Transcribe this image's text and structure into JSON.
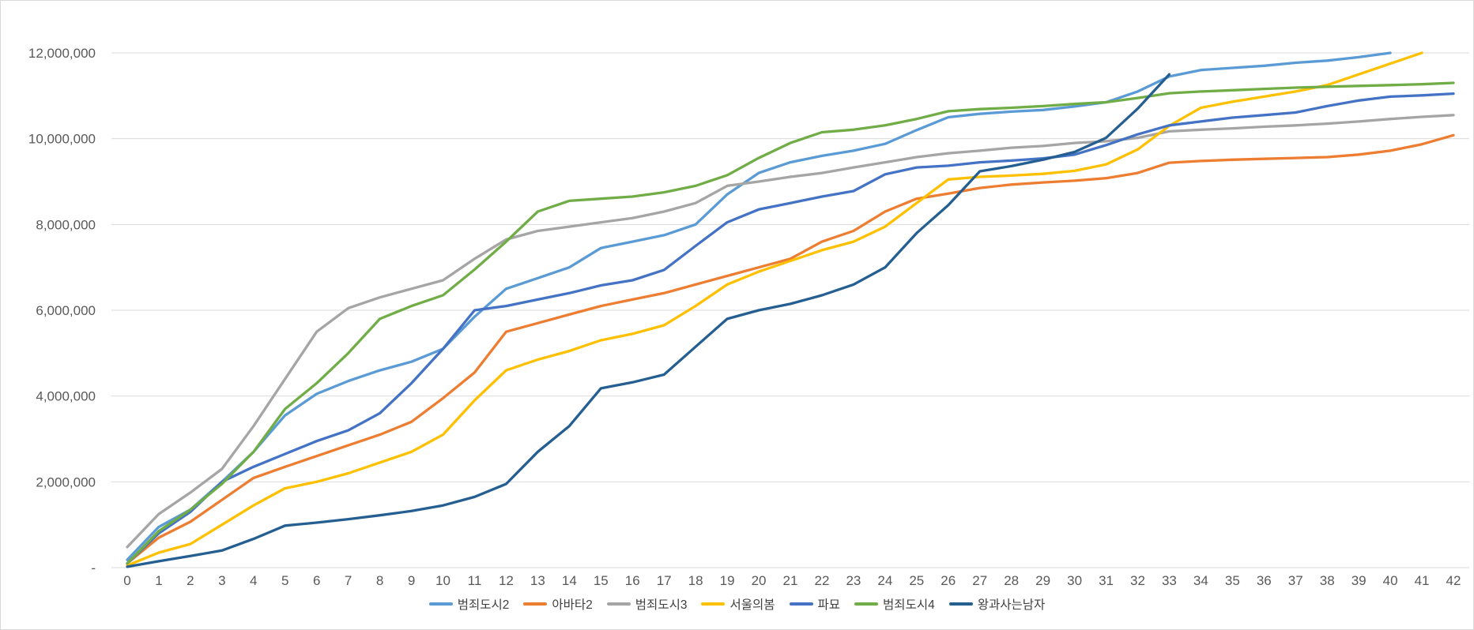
{
  "chart_data": {
    "type": "line",
    "title": "",
    "x_label": "",
    "y_label": "",
    "x_categories": [
      "0",
      "1",
      "2",
      "3",
      "4",
      "5",
      "6",
      "7",
      "8",
      "9",
      "10",
      "11",
      "12",
      "13",
      "14",
      "15",
      "16",
      "17",
      "18",
      "19",
      "20",
      "21",
      "22",
      "23",
      "24",
      "25",
      "26",
      "27",
      "28",
      "29",
      "30",
      "31",
      "32",
      "33",
      "34",
      "35",
      "36",
      "37",
      "38",
      "39",
      "40",
      "41",
      "42"
    ],
    "y_axis": {
      "min": 0,
      "max": 12000000,
      "step": 2000000,
      "tick_labels": [
        "-",
        "2,000,000",
        "4,000,000",
        "6,000,000",
        "8,000,000",
        "10,000,000",
        "12,000,000"
      ]
    },
    "grid": true,
    "legend_position": "bottom",
    "series": [
      {
        "name": "범죄도시2",
        "color": "#5B9BD5",
        "values": [
          180000,
          950000,
          1350000,
          2000000,
          2700000,
          3550000,
          4050000,
          4350000,
          4600000,
          4800000,
          5100000,
          5850000,
          6500000,
          6750000,
          7000000,
          7450000,
          7600000,
          7750000,
          8000000,
          8700000,
          9200000,
          9450000,
          9600000,
          9720000,
          9880000,
          10200000,
          10500000,
          10580000,
          10630000,
          10670000,
          10750000,
          10850000,
          11100000,
          11450000,
          11600000,
          11650000,
          11700000,
          11770000,
          11820000,
          11900000,
          12000000
        ]
      },
      {
        "name": "아바타2",
        "color": "#ED7D31",
        "values": [
          100000,
          700000,
          1070000,
          1580000,
          2090000,
          2350000,
          2600000,
          2850000,
          3100000,
          3400000,
          3950000,
          4550000,
          5500000,
          5700000,
          5900000,
          6100000,
          6250000,
          6400000,
          6600000,
          6800000,
          7000000,
          7200000,
          7600000,
          7850000,
          8300000,
          8600000,
          8720000,
          8850000,
          8930000,
          8980000,
          9020000,
          9080000,
          9200000,
          9440000,
          9480000,
          9510000,
          9530000,
          9550000,
          9570000,
          9630000,
          9720000,
          9870000,
          10080000
        ]
      },
      {
        "name": "범죄도시3",
        "color": "#A5A5A5",
        "values": [
          480000,
          1250000,
          1750000,
          2300000,
          3300000,
          4400000,
          5500000,
          6050000,
          6300000,
          6500000,
          6700000,
          7200000,
          7650000,
          7850000,
          7950000,
          8050000,
          8150000,
          8300000,
          8500000,
          8900000,
          9000000,
          9110000,
          9200000,
          9330000,
          9450000,
          9570000,
          9660000,
          9720000,
          9790000,
          9830000,
          9900000,
          9940000,
          10020000,
          10170000,
          10210000,
          10240000,
          10280000,
          10310000,
          10350000,
          10400000,
          10460000,
          10510000,
          10550000
        ]
      },
      {
        "name": "서울의봄",
        "color": "#FFC000",
        "values": [
          50000,
          350000,
          550000,
          1000000,
          1450000,
          1850000,
          2000000,
          2200000,
          2450000,
          2700000,
          3100000,
          3900000,
          4600000,
          4850000,
          5050000,
          5300000,
          5450000,
          5650000,
          6100000,
          6600000,
          6900000,
          7150000,
          7400000,
          7600000,
          7950000,
          8500000,
          9050000,
          9110000,
          9140000,
          9180000,
          9250000,
          9400000,
          9750000,
          10300000,
          10720000,
          10860000,
          10980000,
          11100000,
          11250000,
          11500000,
          11750000,
          12000000
        ]
      },
      {
        "name": "파묘",
        "color": "#4472C4",
        "values": [
          100000,
          800000,
          1300000,
          2000000,
          2350000,
          2650000,
          2950000,
          3200000,
          3600000,
          4300000,
          5100000,
          6000000,
          6100000,
          6250000,
          6400000,
          6580000,
          6700000,
          6940000,
          7500000,
          8050000,
          8350000,
          8500000,
          8650000,
          8780000,
          9170000,
          9330000,
          9370000,
          9450000,
          9490000,
          9540000,
          9630000,
          9850000,
          10100000,
          10310000,
          10400000,
          10490000,
          10550000,
          10610000,
          10760000,
          10890000,
          10980000,
          11010000,
          11050000
        ]
      },
      {
        "name": "범죄도시4",
        "color": "#70AD47",
        "values": [
          100000,
          850000,
          1350000,
          1950000,
          2700000,
          3700000,
          4300000,
          5000000,
          5800000,
          6100000,
          6350000,
          6950000,
          7600000,
          8300000,
          8550000,
          8600000,
          8650000,
          8750000,
          8900000,
          9150000,
          9550000,
          9900000,
          10150000,
          10210000,
          10310000,
          10460000,
          10640000,
          10690000,
          10720000,
          10760000,
          10810000,
          10850000,
          10950000,
          11060000,
          11100000,
          11130000,
          11160000,
          11190000,
          11210000,
          11230000,
          11250000,
          11270000,
          11300000
        ]
      },
      {
        "name": "왕과사는남자",
        "color": "#255E91",
        "values": [
          20000,
          150000,
          270000,
          400000,
          670000,
          980000,
          1050000,
          1130000,
          1220000,
          1320000,
          1450000,
          1650000,
          1950000,
          2700000,
          3300000,
          4180000,
          4320000,
          4500000,
          5150000,
          5800000,
          6000000,
          6150000,
          6350000,
          6600000,
          7000000,
          7800000,
          8450000,
          9240000,
          9360000,
          9510000,
          9690000,
          10020000,
          10700000,
          11500000
        ]
      }
    ]
  },
  "style": {
    "background": "#FFFFFF",
    "border_color": "#D9D9D9",
    "gridline_color": "#D9D9D9",
    "axis_line_color": "#D9D9D9",
    "axis_text_color": "#595959",
    "legend_text_color": "#404040",
    "line_width": 3.3
  }
}
